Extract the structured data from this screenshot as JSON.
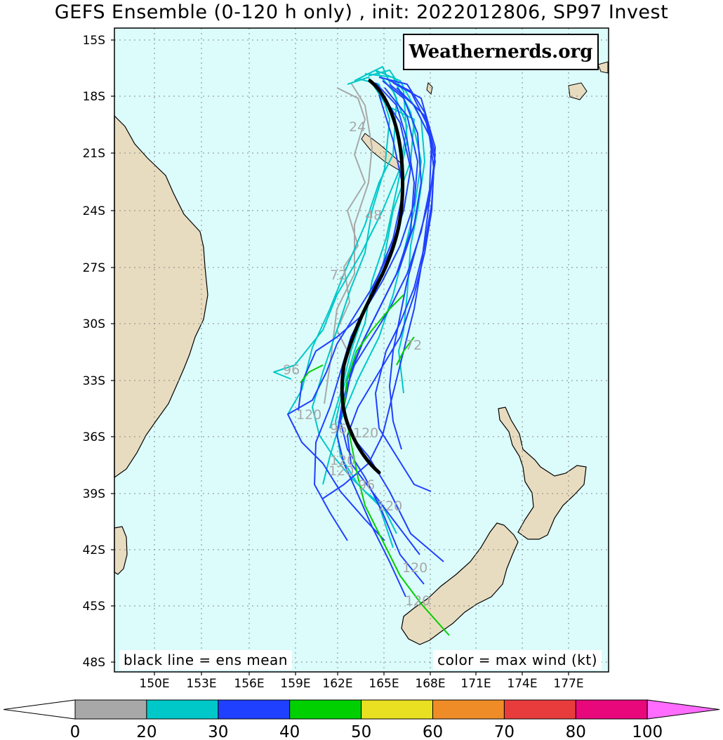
{
  "title": "GEFS Ensemble (0-120 h only) , init: 2022012806, SP97 Invest",
  "watermark": "Weathernerds.org",
  "notes": {
    "left": "black line = ens mean",
    "right": "color = max wind (kt)"
  },
  "lat_labels": [
    "15S",
    "18S",
    "21S",
    "24S",
    "27S",
    "30S",
    "33S",
    "36S",
    "39S",
    "42S",
    "45S",
    "48S"
  ],
  "lon_labels": [
    "150E",
    "153E",
    "156E",
    "159E",
    "162E",
    "165E",
    "168E",
    "171E",
    "174E",
    "177E"
  ],
  "track_labels": [
    "24",
    "48",
    "72",
    "72",
    "96",
    "120",
    "96",
    "120",
    "120",
    "120",
    "120",
    "120",
    "120",
    "96"
  ],
  "colorbar": {
    "ticks": [
      "0",
      "20",
      "30",
      "40",
      "50",
      "60",
      "70",
      "80",
      "100"
    ],
    "colors": [
      "#a8a8a8",
      "#00c8c8",
      "#2040ff",
      "#00d000",
      "#e8e020",
      "#f08c28",
      "#e83c3c",
      "#e8087c"
    ],
    "low_color": "#ffffff",
    "high_color": "#ff6cff"
  },
  "colors": {
    "ocean": "#dcfcfc",
    "land": "#e8dcc0",
    "mean_track": "#000000"
  }
}
